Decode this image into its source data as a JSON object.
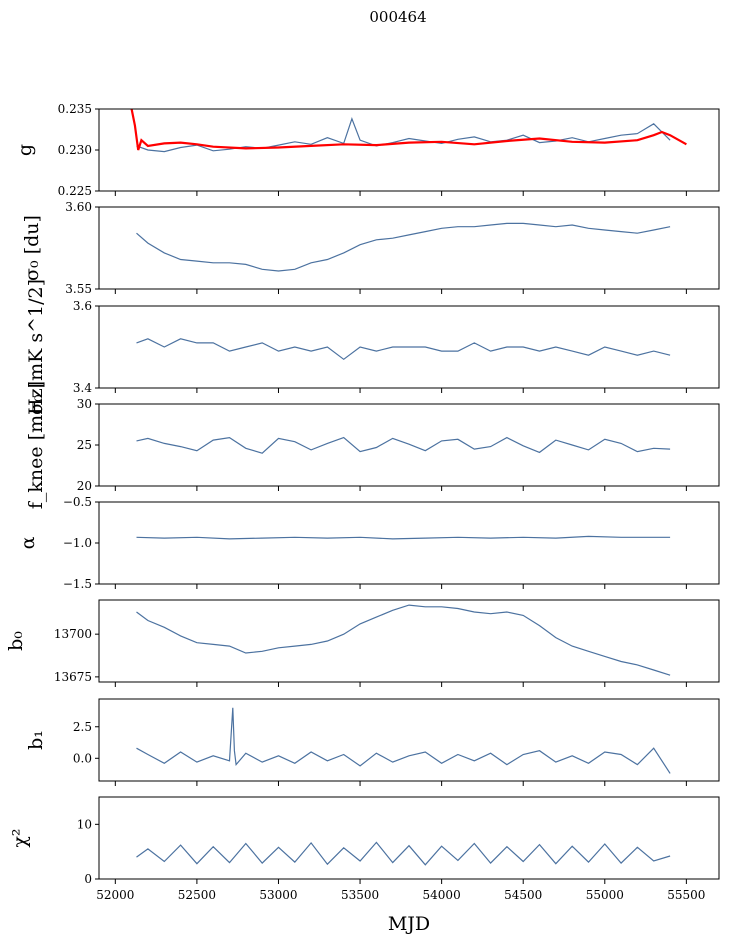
{
  "figure": {
    "title": "000464",
    "xlabel": "MJD",
    "xlim": [
      51900,
      55700
    ],
    "xticks": [
      52000,
      52500,
      53000,
      53500,
      54000,
      54500,
      55000,
      55500
    ],
    "series_color": "#4c72a0",
    "overlay_color": "#ff0000"
  },
  "chart_data": [
    {
      "type": "line",
      "ylabel": "g",
      "ylim": [
        0.225,
        0.235
      ],
      "yticks": [
        0.225,
        0.23,
        0.235
      ],
      "ytick_labels": [
        "0.225",
        "0.230",
        "0.235"
      ],
      "series": [
        {
          "x": [
            52130,
            52200,
            52300,
            52400,
            52500,
            52600,
            52700,
            52800,
            52900,
            53000,
            53100,
            53200,
            53300,
            53400,
            53450,
            53500,
            53600,
            53700,
            53800,
            53900,
            54000,
            54100,
            54200,
            54300,
            54400,
            54500,
            54600,
            54700,
            54800,
            54900,
            55000,
            55100,
            55200,
            55300,
            55400
          ],
          "values": [
            0.2305,
            0.23,
            0.2298,
            0.2303,
            0.2306,
            0.2299,
            0.2301,
            0.2304,
            0.2302,
            0.2306,
            0.231,
            0.2307,
            0.2315,
            0.2308,
            0.2338,
            0.2312,
            0.2305,
            0.2309,
            0.2314,
            0.2311,
            0.2308,
            0.2313,
            0.2316,
            0.231,
            0.2312,
            0.2318,
            0.2309,
            0.2311,
            0.2315,
            0.231,
            0.2314,
            0.2318,
            0.232,
            0.2332,
            0.2312
          ]
        },
        {
          "x": [
            52100,
            52120,
            52140,
            52160,
            52200,
            52300,
            52400,
            52500,
            52600,
            52800,
            53000,
            53200,
            53400,
            53600,
            53800,
            54000,
            54200,
            54400,
            54600,
            54800,
            55000,
            55200,
            55300,
            55350,
            55400,
            55500
          ],
          "values": [
            0.235,
            0.233,
            0.23,
            0.2312,
            0.2305,
            0.2308,
            0.2309,
            0.2307,
            0.2304,
            0.2302,
            0.2303,
            0.2305,
            0.2307,
            0.2306,
            0.2309,
            0.231,
            0.2307,
            0.2311,
            0.2314,
            0.231,
            0.2309,
            0.2312,
            0.2318,
            0.2322,
            0.2318,
            0.2307
          ]
        }
      ]
    },
    {
      "type": "line",
      "ylabel": "σ₀ [du]",
      "ylim": [
        3.55,
        3.6
      ],
      "yticks": [
        3.55,
        3.6
      ],
      "ytick_labels": [
        "3.55",
        "3.60"
      ],
      "series": [
        {
          "x": [
            52130,
            52200,
            52300,
            52400,
            52500,
            52600,
            52700,
            52800,
            52900,
            53000,
            53100,
            53200,
            53300,
            53400,
            53500,
            53600,
            53700,
            53800,
            53900,
            54000,
            54100,
            54200,
            54300,
            54400,
            54500,
            54600,
            54700,
            54800,
            54900,
            55000,
            55100,
            55200,
            55300,
            55400
          ],
          "values": [
            3.584,
            3.578,
            3.572,
            3.568,
            3.567,
            3.566,
            3.566,
            3.565,
            3.562,
            3.561,
            3.562,
            3.566,
            3.568,
            3.572,
            3.577,
            3.58,
            3.581,
            3.583,
            3.585,
            3.587,
            3.588,
            3.588,
            3.589,
            3.59,
            3.59,
            3.589,
            3.588,
            3.589,
            3.587,
            3.586,
            3.585,
            3.584,
            3.586,
            3.588
          ]
        }
      ]
    },
    {
      "type": "line",
      "ylabel": "σ₀ [mK s^1/2]",
      "ylim": [
        3.4,
        3.6
      ],
      "yticks": [
        3.4,
        3.6
      ],
      "ytick_labels": [
        "3.4",
        "3.6"
      ],
      "series": [
        {
          "x": [
            52130,
            52200,
            52300,
            52400,
            52500,
            52600,
            52700,
            52800,
            52900,
            53000,
            53100,
            53200,
            53300,
            53400,
            53500,
            53600,
            53700,
            53800,
            53900,
            54000,
            54100,
            54200,
            54300,
            54400,
            54500,
            54600,
            54700,
            54800,
            54900,
            55000,
            55100,
            55200,
            55300,
            55400
          ],
          "values": [
            3.51,
            3.52,
            3.5,
            3.52,
            3.51,
            3.51,
            3.49,
            3.5,
            3.51,
            3.49,
            3.5,
            3.49,
            3.5,
            3.47,
            3.5,
            3.49,
            3.5,
            3.5,
            3.5,
            3.49,
            3.49,
            3.51,
            3.49,
            3.5,
            3.5,
            3.49,
            3.5,
            3.49,
            3.48,
            3.5,
            3.49,
            3.48,
            3.49,
            3.48
          ]
        }
      ]
    },
    {
      "type": "line",
      "ylabel": "f_knee [mHz]",
      "ylim": [
        20,
        30
      ],
      "yticks": [
        20,
        25,
        30
      ],
      "ytick_labels": [
        "20",
        "25",
        "30"
      ],
      "series": [
        {
          "x": [
            52130,
            52200,
            52300,
            52400,
            52500,
            52600,
            52700,
            52800,
            52900,
            53000,
            53100,
            53200,
            53300,
            53400,
            53500,
            53600,
            53700,
            53800,
            53900,
            54000,
            54100,
            54200,
            54300,
            54400,
            54500,
            54600,
            54700,
            54800,
            54900,
            55000,
            55100,
            55200,
            55300,
            55400
          ],
          "values": [
            25.5,
            25.8,
            25.2,
            24.8,
            24.3,
            25.6,
            25.9,
            24.6,
            24.0,
            25.8,
            25.4,
            24.4,
            25.2,
            25.9,
            24.2,
            24.7,
            25.8,
            25.1,
            24.3,
            25.5,
            25.7,
            24.5,
            24.8,
            25.9,
            24.9,
            24.1,
            25.6,
            25.0,
            24.4,
            25.7,
            25.2,
            24.2,
            24.6,
            24.5
          ]
        }
      ]
    },
    {
      "type": "line",
      "ylabel": "α",
      "ylim": [
        -1.5,
        -0.5
      ],
      "yticks": [
        -1.5,
        -1.0,
        -0.5
      ],
      "ytick_labels": [
        "−1.5",
        "−1.0",
        "−0.5"
      ],
      "series": [
        {
          "x": [
            52130,
            52300,
            52500,
            52700,
            52900,
            53100,
            53300,
            53500,
            53700,
            53900,
            54100,
            54300,
            54500,
            54700,
            54900,
            55100,
            55300,
            55400
          ],
          "values": [
            -0.93,
            -0.94,
            -0.93,
            -0.95,
            -0.94,
            -0.93,
            -0.94,
            -0.93,
            -0.95,
            -0.94,
            -0.93,
            -0.94,
            -0.93,
            -0.94,
            -0.92,
            -0.93,
            -0.93,
            -0.93
          ]
        }
      ]
    },
    {
      "type": "line",
      "ylabel": "b₀",
      "ylim": [
        13672,
        13720
      ],
      "yticks": [
        13675,
        13700
      ],
      "ytick_labels": [
        "13675",
        "13700"
      ],
      "series": [
        {
          "x": [
            52130,
            52200,
            52300,
            52400,
            52500,
            52600,
            52700,
            52800,
            52900,
            53000,
            53100,
            53200,
            53300,
            53400,
            53500,
            53600,
            53700,
            53800,
            53900,
            54000,
            54100,
            54200,
            54300,
            54400,
            54500,
            54600,
            54700,
            54800,
            54900,
            55000,
            55100,
            55200,
            55300,
            55400
          ],
          "values": [
            13713,
            13708,
            13704,
            13699,
            13695,
            13694,
            13693,
            13689,
            13690,
            13692,
            13693,
            13694,
            13696,
            13700,
            13706,
            13710,
            13714,
            13717,
            13716,
            13716,
            13715,
            13713,
            13712,
            13713,
            13711,
            13705,
            13698,
            13693,
            13690,
            13687,
            13684,
            13682,
            13679,
            13676
          ]
        }
      ]
    },
    {
      "type": "line",
      "ylabel": "b₁",
      "ylim": [
        -1.8,
        4.7
      ],
      "yticks": [
        0.0,
        2.5
      ],
      "ytick_labels": [
        "0.0",
        "2.5"
      ],
      "series": [
        {
          "x": [
            52130,
            52200,
            52300,
            52400,
            52500,
            52600,
            52700,
            52720,
            52730,
            52740,
            52800,
            52900,
            53000,
            53100,
            53200,
            53300,
            53400,
            53500,
            53600,
            53700,
            53800,
            53900,
            54000,
            54100,
            54200,
            54300,
            54400,
            54500,
            54600,
            54700,
            54800,
            54900,
            55000,
            55100,
            55200,
            55300,
            55400
          ],
          "values": [
            0.8,
            0.3,
            -0.4,
            0.5,
            -0.3,
            0.2,
            -0.2,
            4.0,
            0.6,
            -0.5,
            0.4,
            -0.3,
            0.2,
            -0.4,
            0.5,
            -0.2,
            0.3,
            -0.6,
            0.4,
            -0.3,
            0.2,
            0.5,
            -0.4,
            0.3,
            -0.2,
            0.4,
            -0.5,
            0.3,
            0.6,
            -0.3,
            0.2,
            -0.4,
            0.5,
            0.3,
            -0.5,
            0.8,
            -1.2
          ]
        }
      ]
    },
    {
      "type": "line",
      "ylabel": "χ²",
      "ylim": [
        0,
        15
      ],
      "yticks": [
        0,
        10
      ],
      "ytick_labels": [
        "0",
        "10"
      ],
      "series": [
        {
          "x": [
            52130,
            52200,
            52300,
            52400,
            52500,
            52600,
            52700,
            52800,
            52900,
            53000,
            53100,
            53200,
            53300,
            53400,
            53500,
            53600,
            53700,
            53800,
            53900,
            54000,
            54100,
            54200,
            54300,
            54400,
            54500,
            54600,
            54700,
            54800,
            54900,
            55000,
            55100,
            55200,
            55300,
            55400
          ],
          "values": [
            4.0,
            5.5,
            3.2,
            6.2,
            2.8,
            5.9,
            3.0,
            6.5,
            2.9,
            5.8,
            3.1,
            6.6,
            2.7,
            5.7,
            3.3,
            6.7,
            3.0,
            6.1,
            2.6,
            6.0,
            3.4,
            6.5,
            2.9,
            5.9,
            3.2,
            6.3,
            2.8,
            6.0,
            3.1,
            6.4,
            2.9,
            5.8,
            3.3,
            4.2
          ]
        }
      ]
    }
  ]
}
